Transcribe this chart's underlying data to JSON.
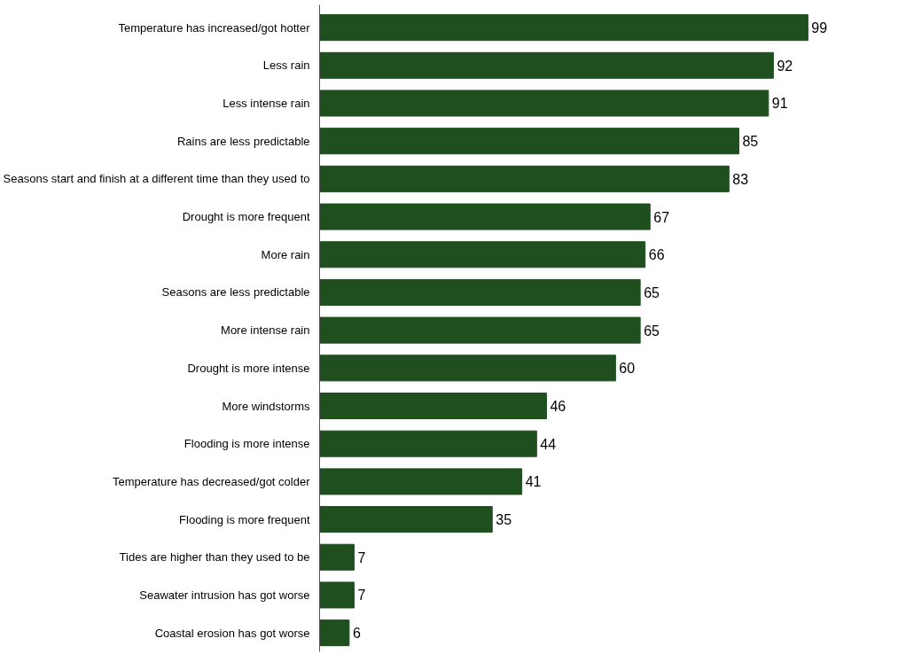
{
  "chart_data": {
    "type": "bar",
    "orientation": "horizontal",
    "data_labels": true,
    "categories": [
      "Temperature has increased/got hotter",
      "Less rain",
      "Less intense rain",
      "Rains are less predictable",
      "Seasons start and finish at a different time than they used to",
      "Drought is more frequent",
      "More rain",
      "Seasons are less predictable",
      "More intense rain",
      "Drought is more intense",
      "More windstorms",
      "Flooding is more intense",
      "Temperature has decreased/got colder",
      "Flooding is more frequent",
      "Tides are higher than they used to be",
      "Seawater intrusion has got worse",
      "Coastal erosion has got worse"
    ],
    "values": [
      99,
      92,
      91,
      85,
      83,
      67,
      66,
      65,
      65,
      60,
      46,
      44,
      41,
      35,
      7,
      7,
      6
    ],
    "color": "#1f4f1f"
  }
}
